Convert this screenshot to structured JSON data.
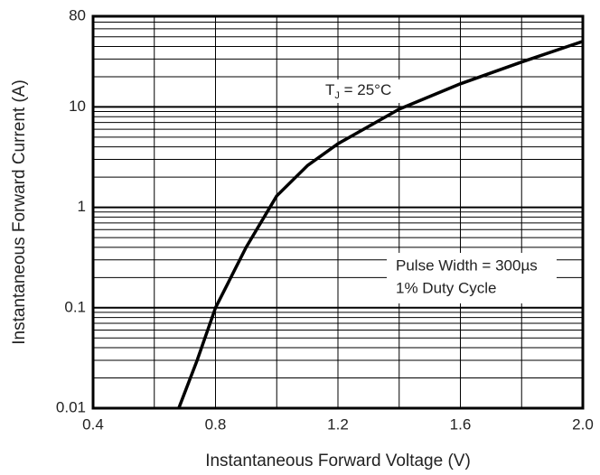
{
  "chart_data": {
    "type": "line",
    "xlabel": "Instantaneous Forward Voltage (V)",
    "ylabel": "Instantaneous Forward Current (A)",
    "x": [
      0.68,
      0.74,
      0.8,
      0.9,
      1.0,
      1.1,
      1.2,
      1.4,
      1.6,
      1.8,
      2.0
    ],
    "series": [
      {
        "color": "#000000",
        "values": [
          0.01,
          0.03,
          0.1,
          0.4,
          1.3,
          2.6,
          4.3,
          9.5,
          17,
          28,
          45
        ]
      }
    ],
    "xlim": [
      0.4,
      2.0
    ],
    "xticks": [
      0.4,
      0.8,
      1.2,
      1.6,
      {
        "value": 2,
        "label": "2.0"
      }
    ],
    "xgrid": [
      0.6,
      1.0,
      1.4,
      1.8
    ],
    "ylim": [
      0.01,
      80
    ],
    "yticks": [
      0.01,
      0.1,
      1,
      10,
      80
    ],
    "ygrid": [
      0.02,
      0.03,
      0.04,
      0.05,
      0.06,
      0.07,
      0.08,
      0.09,
      0.2,
      0.3,
      0.4,
      0.5,
      0.6,
      0.7,
      0.8,
      0.9,
      2,
      3,
      4,
      5,
      6,
      7,
      8,
      9,
      20,
      30,
      40,
      50,
      60,
      70
    ],
    "log_y": true,
    "grid": true,
    "annotations": [
      {
        "parts": [
          "T",
          "J",
          " = 25°C"
        ]
      },
      {
        "lines": [
          "Pulse Width = 300µs",
          "1% Duty Cycle"
        ]
      }
    ]
  }
}
